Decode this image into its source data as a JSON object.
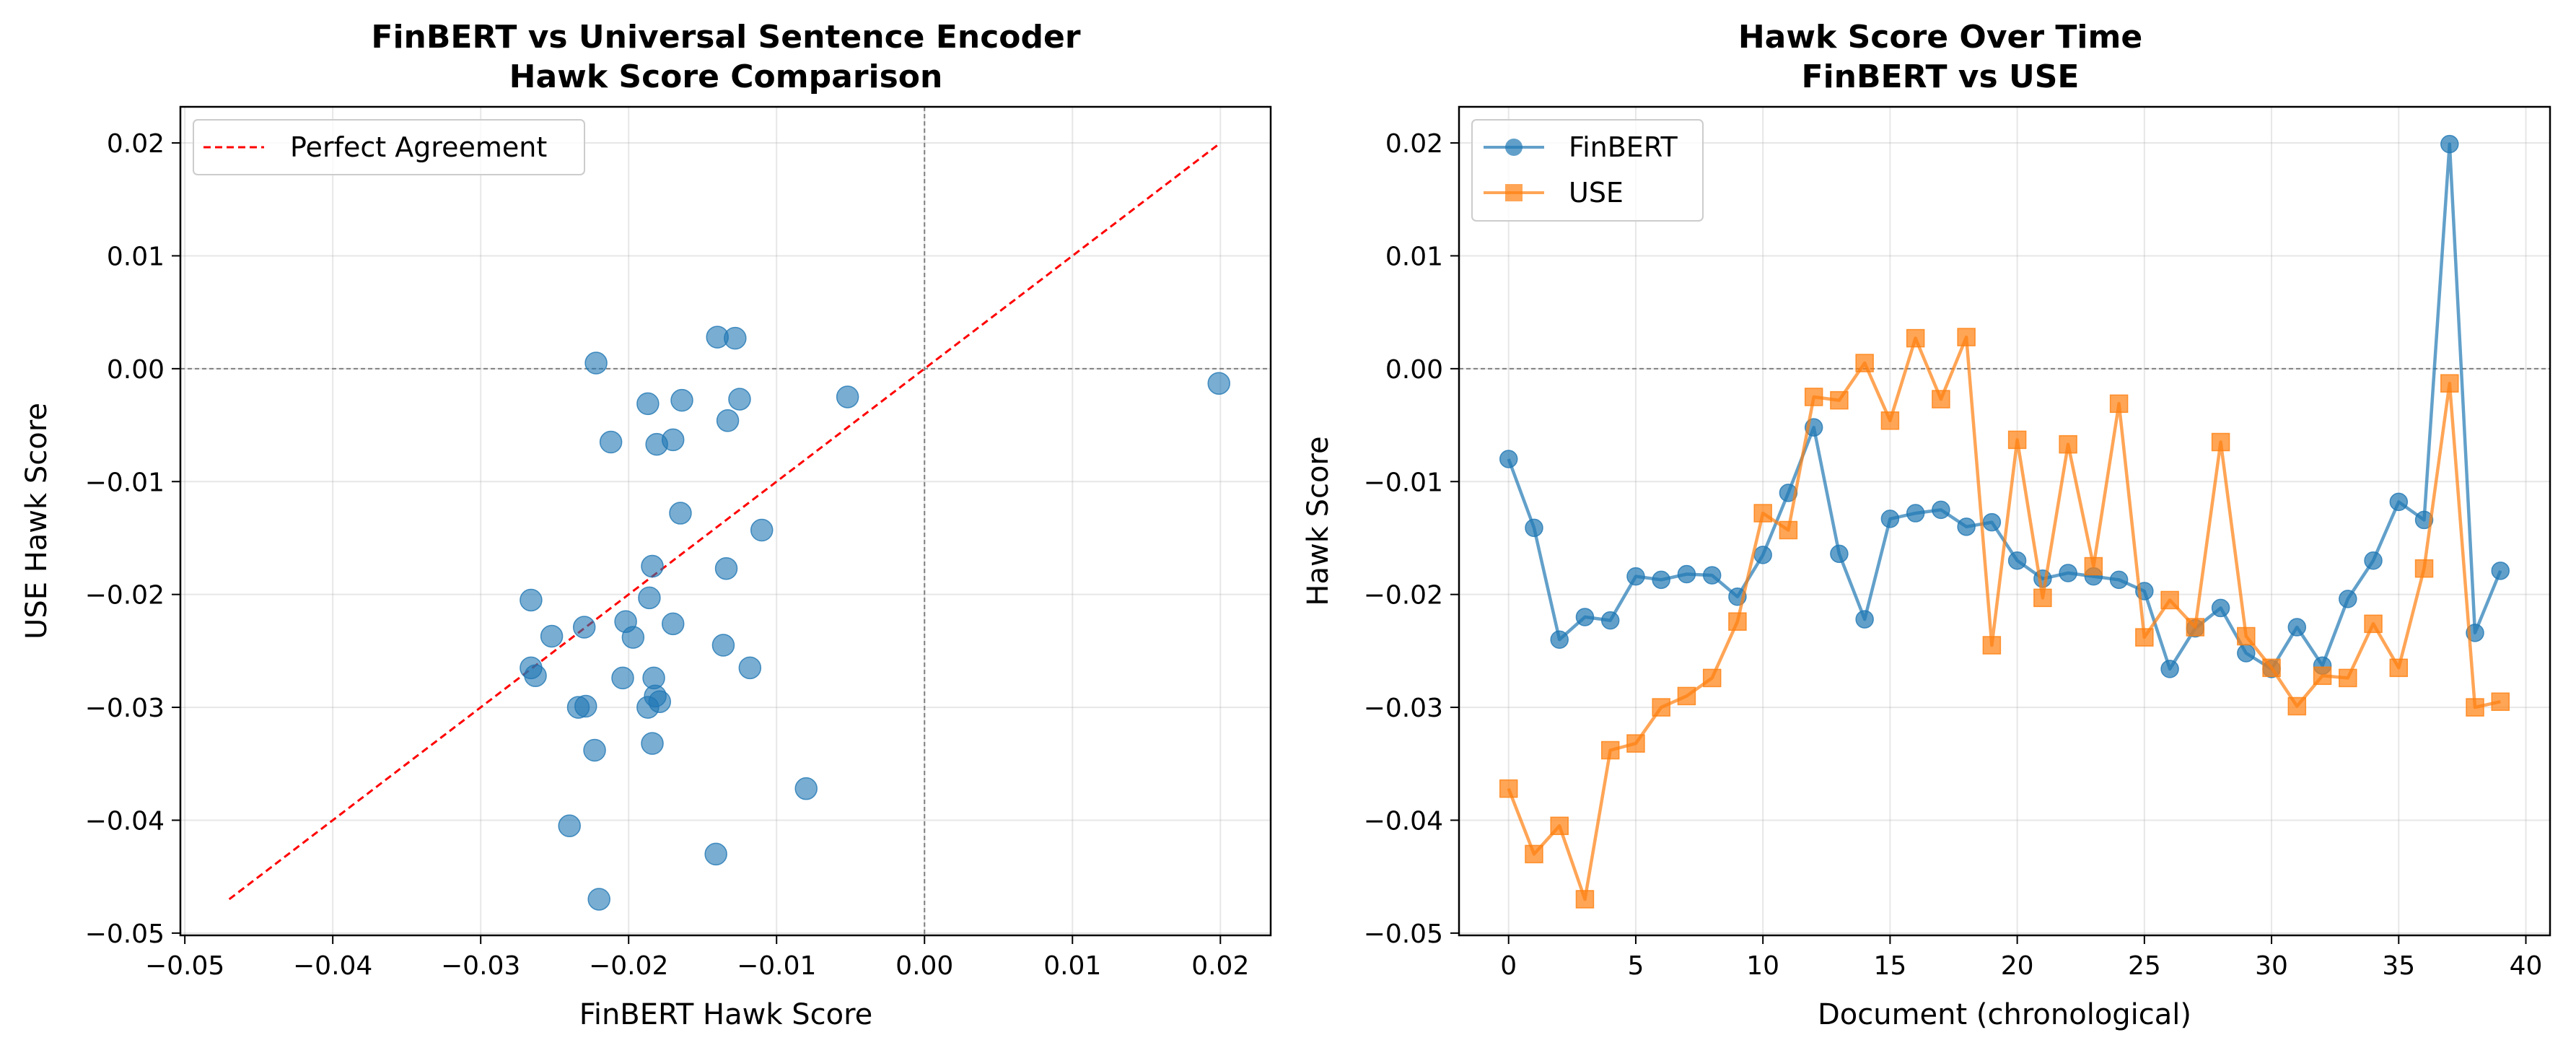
{
  "chart_data": [
    {
      "type": "scatter",
      "title": [
        "FinBERT vs Universal Sentence Encoder",
        "Hawk Score Comparison"
      ],
      "xlabel": "FinBERT Hawk Score",
      "ylabel": "USE Hawk Score",
      "xlim": [
        -0.0503,
        0.0234
      ],
      "ylim": [
        -0.0502,
        0.0232
      ],
      "xticks": [
        -0.05,
        -0.04,
        -0.03,
        -0.02,
        -0.01,
        0.0,
        0.01,
        0.02
      ],
      "xtick_labels": [
        "−0.05",
        "−0.04",
        "−0.03",
        "−0.02",
        "−0.01",
        "0.00",
        "0.01",
        "0.02"
      ],
      "yticks": [
        -0.05,
        -0.04,
        -0.03,
        -0.02,
        -0.01,
        0.0,
        0.01,
        0.02
      ],
      "ytick_labels": [
        "−0.05",
        "−0.04",
        "−0.03",
        "−0.02",
        "−0.01",
        "0.00",
        "0.01",
        "0.02"
      ],
      "grid": true,
      "legend": "top-left",
      "reference_lines": {
        "x": 0,
        "y": 0,
        "color": "#808080"
      },
      "diagonal": {
        "name": "Perfect Agreement",
        "x": [
          -0.047,
          0.02
        ],
        "y": [
          -0.047,
          0.02
        ],
        "color": "#ff0000",
        "style": "dashed"
      },
      "point_color": "#1f77b4",
      "points": [
        [
          -0.008,
          -0.0372
        ],
        [
          -0.0141,
          -0.043
        ],
        [
          -0.024,
          -0.0405
        ],
        [
          -0.022,
          -0.047
        ],
        [
          -0.0223,
          -0.0338
        ],
        [
          -0.0184,
          -0.0332
        ],
        [
          -0.0187,
          -0.03
        ],
        [
          -0.0182,
          -0.029
        ],
        [
          -0.0183,
          -0.0274
        ],
        [
          -0.0202,
          -0.0224
        ],
        [
          -0.0165,
          -0.0128
        ],
        [
          -0.011,
          -0.0143
        ],
        [
          -0.0052,
          -0.0025
        ],
        [
          -0.0164,
          -0.0028
        ],
        [
          -0.0222,
          0.0005
        ],
        [
          -0.0133,
          -0.0046
        ],
        [
          -0.0128,
          0.0027
        ],
        [
          -0.0125,
          -0.0027
        ],
        [
          -0.014,
          0.0028
        ],
        [
          -0.0136,
          -0.0245
        ],
        [
          -0.017,
          -0.0063
        ],
        [
          -0.0186,
          -0.0203
        ],
        [
          -0.0181,
          -0.0067
        ],
        [
          -0.0184,
          -0.0175
        ],
        [
          -0.0187,
          -0.0031
        ],
        [
          -0.0197,
          -0.0238
        ],
        [
          -0.0266,
          -0.0205
        ],
        [
          -0.023,
          -0.0229
        ],
        [
          -0.0212,
          -0.0065
        ],
        [
          -0.0252,
          -0.0237
        ],
        [
          -0.0266,
          -0.0265
        ],
        [
          -0.0229,
          -0.0299
        ],
        [
          -0.0263,
          -0.0272
        ],
        [
          -0.0204,
          -0.0274
        ],
        [
          -0.017,
          -0.0226
        ],
        [
          -0.0118,
          -0.0265
        ],
        [
          -0.0134,
          -0.0177
        ],
        [
          0.0199,
          -0.0013
        ],
        [
          -0.0234,
          -0.03
        ],
        [
          -0.0179,
          -0.0295
        ]
      ]
    },
    {
      "type": "line",
      "title": [
        "Hawk Score Over Time",
        "FinBERT vs USE"
      ],
      "xlabel": "Document (chronological)",
      "ylabel": "Hawk Score",
      "xlim": [
        -1.95,
        40.95
      ],
      "ylim": [
        -0.0502,
        0.0232
      ],
      "xticks": [
        0,
        5,
        10,
        15,
        20,
        25,
        30,
        35,
        40
      ],
      "xtick_labels": [
        "0",
        "5",
        "10",
        "15",
        "20",
        "25",
        "30",
        "35",
        "40"
      ],
      "yticks": [
        -0.05,
        -0.04,
        -0.03,
        -0.02,
        -0.01,
        0.0,
        0.01,
        0.02
      ],
      "ytick_labels": [
        "−0.05",
        "−0.04",
        "−0.03",
        "−0.02",
        "−0.01",
        "0.00",
        "0.01",
        "0.02"
      ],
      "grid": true,
      "legend": "top-left",
      "reference_lines": {
        "y": 0,
        "color": "#808080"
      },
      "x": [
        0,
        1,
        2,
        3,
        4,
        5,
        6,
        7,
        8,
        9,
        10,
        11,
        12,
        13,
        14,
        15,
        16,
        17,
        18,
        19,
        20,
        21,
        22,
        23,
        24,
        25,
        26,
        27,
        28,
        29,
        30,
        31,
        32,
        33,
        34,
        35,
        36,
        37,
        38,
        39
      ],
      "series": [
        {
          "name": "FinBERT",
          "color": "#1f77b4",
          "marker": "circle",
          "values": [
            -0.008,
            -0.0141,
            -0.024,
            -0.022,
            -0.0223,
            -0.0184,
            -0.0187,
            -0.0182,
            -0.0183,
            -0.0202,
            -0.0165,
            -0.011,
            -0.0052,
            -0.0164,
            -0.0222,
            -0.0133,
            -0.0128,
            -0.0125,
            -0.014,
            -0.0136,
            -0.017,
            -0.0186,
            -0.0181,
            -0.0184,
            -0.0187,
            -0.0197,
            -0.0266,
            -0.023,
            -0.0212,
            -0.0252,
            -0.0266,
            -0.0229,
            -0.0263,
            -0.0204,
            -0.017,
            -0.0118,
            -0.0134,
            0.0199,
            -0.0234,
            -0.0179
          ]
        },
        {
          "name": "USE",
          "color": "#ff7f0e",
          "marker": "square",
          "values": [
            -0.0372,
            -0.043,
            -0.0405,
            -0.047,
            -0.0338,
            -0.0332,
            -0.03,
            -0.029,
            -0.0274,
            -0.0224,
            -0.0128,
            -0.0143,
            -0.0025,
            -0.0028,
            0.0005,
            -0.0046,
            0.0027,
            -0.0027,
            0.0028,
            -0.0245,
            -0.0063,
            -0.0203,
            -0.0067,
            -0.0175,
            -0.0031,
            -0.0238,
            -0.0205,
            -0.0229,
            -0.0065,
            -0.0237,
            -0.0265,
            -0.0299,
            -0.0272,
            -0.0274,
            -0.0226,
            -0.0265,
            -0.0177,
            -0.0013,
            -0.03,
            -0.0295
          ]
        }
      ]
    }
  ]
}
